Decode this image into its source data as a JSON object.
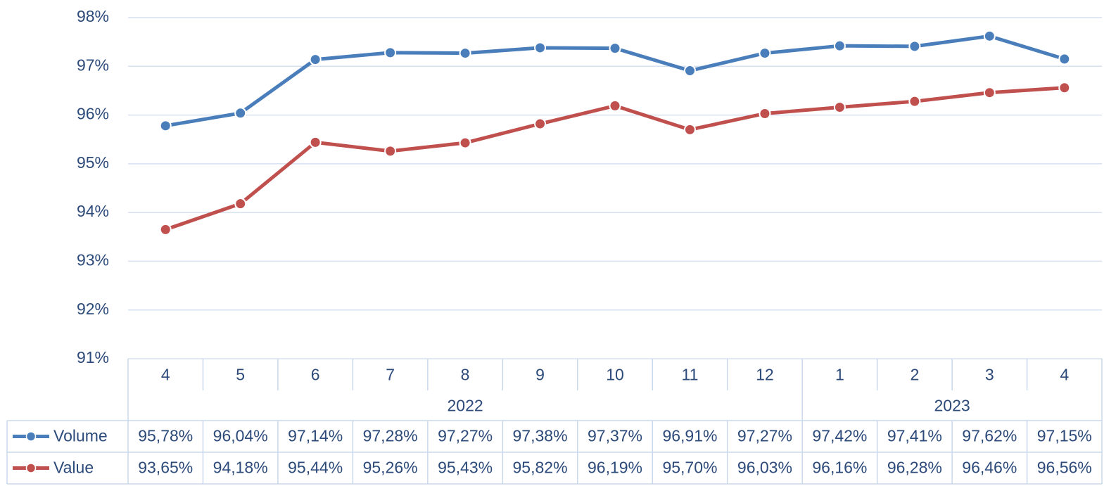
{
  "chart_data": {
    "type": "line",
    "categories": [
      "4",
      "5",
      "6",
      "7",
      "8",
      "9",
      "10",
      "11",
      "12",
      "1",
      "2",
      "3",
      "4"
    ],
    "category_groups": [
      {
        "label": "2022",
        "count": 9
      },
      {
        "label": "2023",
        "count": 4
      }
    ],
    "ylim": [
      91,
      98
    ],
    "yticks": [
      {
        "value": 91,
        "label": "91%"
      },
      {
        "value": 92,
        "label": "92%"
      },
      {
        "value": 93,
        "label": "93%"
      },
      {
        "value": 94,
        "label": "94%"
      },
      {
        "value": 95,
        "label": "95%"
      },
      {
        "value": 96,
        "label": "96%"
      },
      {
        "value": 97,
        "label": "97%"
      },
      {
        "value": 98,
        "label": "98%"
      }
    ],
    "grid": true,
    "series": [
      {
        "name": "Volume",
        "color": "#4a7ebb",
        "values": [
          95.78,
          96.04,
          97.14,
          97.28,
          97.27,
          97.38,
          97.37,
          96.91,
          97.27,
          97.42,
          97.41,
          97.62,
          97.15
        ],
        "value_labels": [
          "95,78%",
          "96,04%",
          "97,14%",
          "97,28%",
          "97,27%",
          "97,38%",
          "97,37%",
          "96,91%",
          "97,27%",
          "97,42%",
          "97,41%",
          "97,62%",
          "97,15%"
        ]
      },
      {
        "name": "Value",
        "color": "#c0504d",
        "values": [
          93.65,
          94.18,
          95.44,
          95.26,
          95.43,
          95.82,
          96.19,
          95.7,
          96.03,
          96.16,
          96.28,
          96.46,
          96.56
        ],
        "value_labels": [
          "93,65%",
          "94,18%",
          "95,44%",
          "95,26%",
          "95,43%",
          "95,82%",
          "96,19%",
          "95,70%",
          "96,03%",
          "96,16%",
          "96,28%",
          "96,46%",
          "96,56%"
        ]
      }
    ]
  }
}
